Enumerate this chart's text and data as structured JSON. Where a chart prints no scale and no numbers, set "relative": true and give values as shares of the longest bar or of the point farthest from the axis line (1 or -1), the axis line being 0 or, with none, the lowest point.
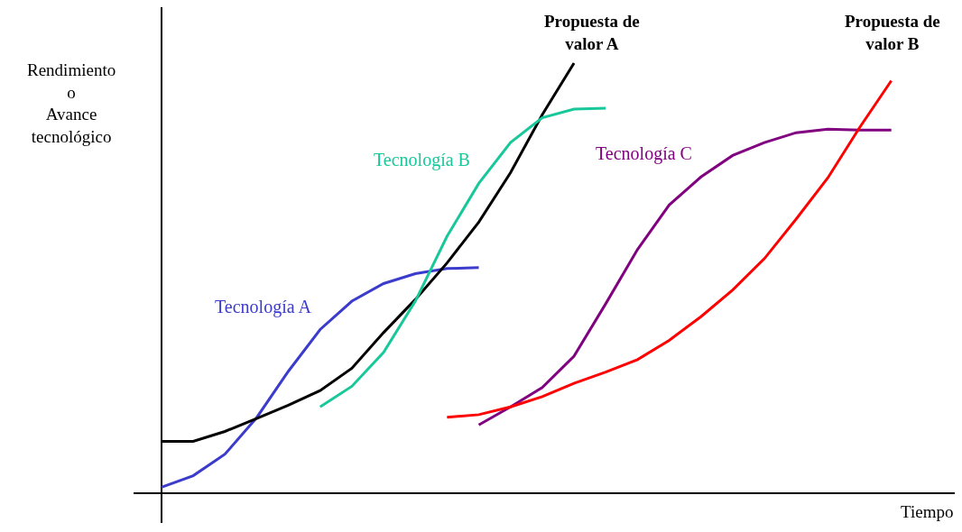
{
  "chart_data": {
    "type": "line",
    "relative": true,
    "xlabel": "Tiempo",
    "ylabel": "Rendimiento\no\nAvance\ntecnológico",
    "legend": false,
    "marker": "none",
    "annotations": [
      "Propuesta de\nvalor A",
      "Propuesta de\nvalor B"
    ],
    "categories": [
      null,
      null,
      null,
      null,
      null,
      null,
      null,
      null,
      null,
      null,
      null,
      null,
      null,
      null,
      null,
      null,
      null,
      null,
      null,
      null,
      null,
      null,
      null,
      null
    ],
    "series": [
      {
        "name": "Tecnología A",
        "color": "#3b3bcc",
        "values": [
          0.013,
          0.04,
          0.09,
          0.175,
          0.283,
          0.38,
          0.446,
          0.487,
          0.51,
          0.522,
          0.524,
          null,
          null,
          null,
          null,
          null,
          null,
          null,
          null,
          null,
          null,
          null,
          null,
          null
        ]
      },
      {
        "color": "#000000",
        "values": [
          0.12,
          0.12,
          0.143,
          0.173,
          0.204,
          0.238,
          0.29,
          0.373,
          0.45,
          0.535,
          0.63,
          0.745,
          0.88,
          1,
          null,
          null,
          null,
          null,
          null,
          null,
          null,
          null,
          null,
          null
        ]
      },
      {
        "name": "Tecnología B",
        "color": "#19c89a",
        "values": [
          null,
          null,
          null,
          null,
          null,
          0.2,
          0.248,
          0.327,
          0.446,
          0.597,
          0.72,
          0.815,
          0.873,
          0.893,
          0.895,
          null,
          null,
          null,
          null,
          null,
          null,
          null,
          null,
          null
        ]
      },
      {
        "name": "Tecnología C",
        "color": "#800080",
        "values": [
          null,
          null,
          null,
          null,
          null,
          null,
          null,
          null,
          null,
          null,
          0.158,
          0.2,
          0.245,
          0.318,
          0.44,
          0.566,
          0.67,
          0.735,
          0.785,
          0.815,
          0.838,
          0.846,
          0.844,
          0.844
        ]
      },
      {
        "color": "#ff0000",
        "values": [
          null,
          null,
          null,
          null,
          null,
          null,
          null,
          null,
          null,
          0.176,
          0.182,
          0.2,
          0.224,
          0.255,
          0.281,
          0.31,
          0.355,
          0.41,
          0.472,
          0.545,
          0.637,
          0.733,
          0.85,
          0.959
        ]
      }
    ]
  }
}
